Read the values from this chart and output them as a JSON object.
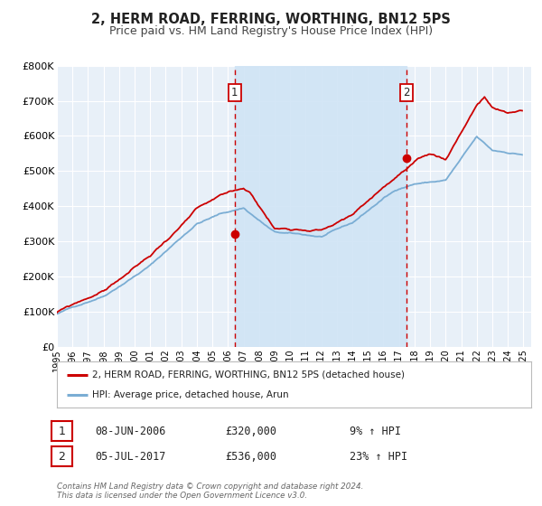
{
  "title": "2, HERM ROAD, FERRING, WORTHING, BN12 5PS",
  "subtitle": "Price paid vs. HM Land Registry's House Price Index (HPI)",
  "ylim": [
    0,
    800000
  ],
  "yticks": [
    0,
    100000,
    200000,
    300000,
    400000,
    500000,
    600000,
    700000,
    800000
  ],
  "ytick_labels": [
    "£0",
    "£100K",
    "£200K",
    "£300K",
    "£400K",
    "£500K",
    "£600K",
    "£700K",
    "£800K"
  ],
  "xlim_start": 1995.0,
  "xlim_end": 2025.5,
  "xtick_years": [
    1995,
    1996,
    1997,
    1998,
    1999,
    2000,
    2001,
    2002,
    2003,
    2004,
    2005,
    2006,
    2007,
    2008,
    2009,
    2010,
    2011,
    2012,
    2013,
    2014,
    2015,
    2016,
    2017,
    2018,
    2019,
    2020,
    2021,
    2022,
    2023,
    2024,
    2025
  ],
  "background_color": "#ffffff",
  "plot_bg_color": "#e8f0f8",
  "grid_color": "#ffffff",
  "sale1_x": 2006.44,
  "sale1_y": 320000,
  "sale1_label": "1",
  "sale2_x": 2017.5,
  "sale2_y": 536000,
  "sale2_label": "2",
  "sale_marker_color": "#cc0000",
  "vline_color": "#cc0000",
  "hpi_line_color": "#7aadd4",
  "price_line_color": "#cc0000",
  "shade_between_sales_color": "#d0e4f5",
  "legend_label1": "2, HERM ROAD, FERRING, WORTHING, BN12 5PS (detached house)",
  "legend_label2": "HPI: Average price, detached house, Arun",
  "annotation1_date": "08-JUN-2006",
  "annotation1_price": "£320,000",
  "annotation1_hpi": "9% ↑ HPI",
  "annotation2_date": "05-JUL-2017",
  "annotation2_price": "£536,000",
  "annotation2_hpi": "23% ↑ HPI",
  "footer": "Contains HM Land Registry data © Crown copyright and database right 2024.\nThis data is licensed under the Open Government Licence v3.0.",
  "title_fontsize": 10.5,
  "subtitle_fontsize": 9
}
